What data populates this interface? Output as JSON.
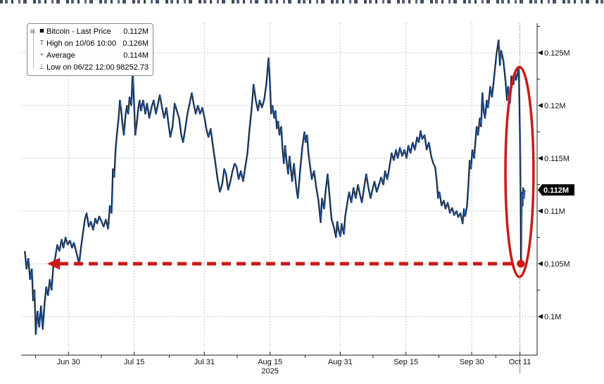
{
  "legend": {
    "rows": [
      {
        "marker": "last-price-square",
        "label": "Bitcoin - Last Price",
        "value": "0.112M"
      },
      {
        "marker": "high-marker",
        "label": "High on 10/06 10:00",
        "value": "0.126M"
      },
      {
        "marker": "average-marker",
        "label": "Average",
        "value": "0.114M"
      },
      {
        "marker": "low-marker",
        "label": "Low on 06/22 12:00",
        "value": "98252.73"
      }
    ]
  },
  "colors": {
    "line_black": "#0a0d12",
    "line_blue": "#2e6cc1",
    "annotation_red": "#cc1a15",
    "grid_gray": "#9c9c9c",
    "last_price_tag_bg": "#000000",
    "last_price_tag_text": "#ffffff"
  },
  "chart_data": {
    "type": "line",
    "title": "Bitcoin - Last Price",
    "x_unit": "days since 2025-06-20",
    "year_label": "2025",
    "ylim": [
      0.0963,
      0.1278
    ],
    "grid": true,
    "legend_position": "top-left",
    "stats": {
      "last_price": "0.112M",
      "high_on_10_06_10_00": "0.126M",
      "average": "0.114M",
      "low_on_06_22_12_00": "98252.73"
    },
    "y_ticks": [
      {
        "label": "0.1M",
        "value": 0.1
      },
      {
        "label": "0.105M",
        "value": 0.105
      },
      {
        "label": "0.11M",
        "value": 0.11
      },
      {
        "label": "0.115M",
        "value": 0.115
      },
      {
        "label": "0.12M",
        "value": 0.12
      },
      {
        "label": "0.125M",
        "value": 0.125
      }
    ],
    "y_minor": [
      0.1025,
      0.1075,
      0.1125,
      0.1175,
      0.1225,
      0.1275
    ],
    "x_ticks": [
      {
        "label": "Jun 30",
        "d": 10
      },
      {
        "label": "Jul 15",
        "d": 25
      },
      {
        "label": "Jul 31",
        "d": 41
      },
      {
        "label": "Aug 15",
        "d": 56
      },
      {
        "label": "Aug 31",
        "d": 72
      },
      {
        "label": "Sep 15",
        "d": 87
      },
      {
        "label": "Sep 30",
        "d": 102
      },
      {
        "label": "Oct 11",
        "d": 113
      }
    ],
    "x_minor_d": [
      2.5,
      17.5,
      33,
      48.5,
      64,
      79.5,
      94.5,
      107.5
    ],
    "crosshair_d": 113,
    "last_price_label": "0.112M",
    "last_price_value": 0.112,
    "annotations": {
      "dashed_level_line": {
        "value": 0.105,
        "d_from": 5.3,
        "d_to": 113.2,
        "arrow": "left",
        "color": "#cc1a15"
      },
      "endpoint_dot": {
        "d": 113.2,
        "value": 0.105
      },
      "ellipse_highlight": {
        "d_center": 112.9,
        "value_center": 0.1137,
        "d_half_width": 3.2,
        "value_half_height": 0.00995
      }
    },
    "series": [
      {
        "name": "Bitcoin - Last Price",
        "points": [
          [
            0.0,
            0.1062
          ],
          [
            0.4,
            0.1045
          ],
          [
            0.8,
            0.1055
          ],
          [
            1.2,
            0.1035
          ],
          [
            1.6,
            0.1045
          ],
          [
            1.9,
            0.1015
          ],
          [
            2.2,
            0.1025
          ],
          [
            2.5,
            0.0983
          ],
          [
            2.9,
            0.1005
          ],
          [
            3.3,
            0.099
          ],
          [
            3.7,
            0.101
          ],
          [
            4.1,
            0.0988
          ],
          [
            4.5,
            0.1012
          ],
          [
            4.9,
            0.1028
          ],
          [
            5.3,
            0.102
          ],
          [
            5.7,
            0.1035
          ],
          [
            6.1,
            0.1025
          ],
          [
            6.5,
            0.1048
          ],
          [
            6.9,
            0.1055
          ],
          [
            7.4,
            0.1068
          ],
          [
            7.9,
            0.1062
          ],
          [
            8.4,
            0.1073
          ],
          [
            8.8,
            0.1065
          ],
          [
            9.3,
            0.1075
          ],
          [
            9.8,
            0.1068
          ],
          [
            10.3,
            0.1072
          ],
          [
            10.8,
            0.1065
          ],
          [
            11.2,
            0.107
          ],
          [
            11.7,
            0.1062
          ],
          [
            12.4,
            0.105
          ],
          [
            12.8,
            0.1065
          ],
          [
            13.3,
            0.108
          ],
          [
            13.7,
            0.1092
          ],
          [
            14.1,
            0.1098
          ],
          [
            14.6,
            0.1085
          ],
          [
            15.1,
            0.109
          ],
          [
            15.6,
            0.1082
          ],
          [
            16.1,
            0.1093
          ],
          [
            16.5,
            0.1088
          ],
          [
            17.0,
            0.1095
          ],
          [
            17.5,
            0.109
          ],
          [
            18.0,
            0.1085
          ],
          [
            18.5,
            0.1092
          ],
          [
            19.0,
            0.1083
          ],
          [
            19.4,
            0.1105
          ],
          [
            19.8,
            0.1098
          ],
          [
            20.1,
            0.114
          ],
          [
            20.4,
            0.1132
          ],
          [
            20.7,
            0.1158
          ],
          [
            21.0,
            0.1172
          ],
          [
            21.4,
            0.1188
          ],
          [
            21.7,
            0.1205
          ],
          [
            22.0,
            0.1195
          ],
          [
            22.3,
            0.1182
          ],
          [
            22.6,
            0.1172
          ],
          [
            23.0,
            0.1192
          ],
          [
            23.3,
            0.12
          ],
          [
            23.6,
            0.1192
          ],
          [
            23.9,
            0.1208
          ],
          [
            24.3,
            0.12
          ],
          [
            24.6,
            0.1232
          ],
          [
            24.9,
            0.1205
          ],
          [
            25.2,
            0.1172
          ],
          [
            25.5,
            0.1182
          ],
          [
            25.9,
            0.1198
          ],
          [
            26.2,
            0.1205
          ],
          [
            26.5,
            0.1195
          ],
          [
            27.0,
            0.1205
          ],
          [
            27.5,
            0.1192
          ],
          [
            27.9,
            0.1202
          ],
          [
            28.4,
            0.1188
          ],
          [
            28.9,
            0.1198
          ],
          [
            29.4,
            0.1205
          ],
          [
            29.9,
            0.1192
          ],
          [
            30.4,
            0.1202
          ],
          [
            30.8,
            0.121
          ],
          [
            31.3,
            0.1198
          ],
          [
            31.8,
            0.1188
          ],
          [
            32.3,
            0.1198
          ],
          [
            32.8,
            0.1182
          ],
          [
            33.2,
            0.117
          ],
          [
            33.7,
            0.118
          ],
          [
            34.2,
            0.1202
          ],
          [
            34.7,
            0.1195
          ],
          [
            35.2,
            0.1188
          ],
          [
            35.7,
            0.1172
          ],
          [
            36.1,
            0.1165
          ],
          [
            36.6,
            0.1178
          ],
          [
            37.1,
            0.1192
          ],
          [
            37.6,
            0.1202
          ],
          [
            38.1,
            0.1212
          ],
          [
            38.5,
            0.1202
          ],
          [
            39.0,
            0.1192
          ],
          [
            39.5,
            0.12
          ],
          [
            40.0,
            0.1192
          ],
          [
            40.5,
            0.1198
          ],
          [
            41.0,
            0.1188
          ],
          [
            41.4,
            0.1178
          ],
          [
            41.9,
            0.117
          ],
          [
            42.4,
            0.1178
          ],
          [
            42.9,
            0.1162
          ],
          [
            43.5,
            0.1145
          ],
          [
            44.0,
            0.113
          ],
          [
            44.5,
            0.1118
          ],
          [
            45.0,
            0.1125
          ],
          [
            45.5,
            0.114
          ],
          [
            45.9,
            0.1135
          ],
          [
            46.4,
            0.112
          ],
          [
            46.9,
            0.1128
          ],
          [
            47.4,
            0.1138
          ],
          [
            47.9,
            0.1145
          ],
          [
            48.3,
            0.1142
          ],
          [
            48.8,
            0.113
          ],
          [
            49.3,
            0.1138
          ],
          [
            49.8,
            0.1128
          ],
          [
            50.3,
            0.1142
          ],
          [
            50.8,
            0.1155
          ],
          [
            51.2,
            0.1175
          ],
          [
            51.7,
            0.1195
          ],
          [
            52.2,
            0.122
          ],
          [
            52.7,
            0.1205
          ],
          [
            53.2,
            0.1195
          ],
          [
            53.6,
            0.1205
          ],
          [
            54.1,
            0.1198
          ],
          [
            54.6,
            0.1205
          ],
          [
            55.1,
            0.122
          ],
          [
            55.6,
            0.1245
          ],
          [
            55.9,
            0.1225
          ],
          [
            56.2,
            0.1192
          ],
          [
            56.5,
            0.12
          ],
          [
            56.9,
            0.1188
          ],
          [
            57.2,
            0.1195
          ],
          [
            57.5,
            0.1178
          ],
          [
            57.8,
            0.1185
          ],
          [
            58.1,
            0.1172
          ],
          [
            58.5,
            0.118
          ],
          [
            58.8,
            0.1158
          ],
          [
            59.1,
            0.1145
          ],
          [
            59.4,
            0.1162
          ],
          [
            59.7,
            0.1148
          ],
          [
            60.1,
            0.1135
          ],
          [
            60.4,
            0.1152
          ],
          [
            60.7,
            0.114
          ],
          [
            61.0,
            0.1128
          ],
          [
            61.4,
            0.1145
          ],
          [
            61.7,
            0.1132
          ],
          [
            62.0,
            0.112
          ],
          [
            62.3,
            0.1112
          ],
          [
            62.8,
            0.1138
          ],
          [
            63.3,
            0.116
          ],
          [
            63.8,
            0.1175
          ],
          [
            64.1,
            0.1165
          ],
          [
            64.4,
            0.1172
          ],
          [
            64.7,
            0.1155
          ],
          [
            65.1,
            0.1142
          ],
          [
            65.5,
            0.113
          ],
          [
            66.0,
            0.1138
          ],
          [
            66.5,
            0.1122
          ],
          [
            67.0,
            0.111
          ],
          [
            67.5,
            0.1089
          ],
          [
            67.8,
            0.1112
          ],
          [
            68.3,
            0.1102
          ],
          [
            68.6,
            0.1118
          ],
          [
            69.1,
            0.1135
          ],
          [
            69.4,
            0.112
          ],
          [
            69.7,
            0.1105
          ],
          [
            70.0,
            0.1092
          ],
          [
            70.5,
            0.1085
          ],
          [
            71.0,
            0.1075
          ],
          [
            71.3,
            0.109
          ],
          [
            71.6,
            0.1082
          ],
          [
            72.0,
            0.1076
          ],
          [
            72.3,
            0.1088
          ],
          [
            72.8,
            0.1078
          ],
          [
            73.1,
            0.1095
          ],
          [
            73.6,
            0.1108
          ],
          [
            74.0,
            0.1118
          ],
          [
            74.5,
            0.1108
          ],
          [
            75.0,
            0.1122
          ],
          [
            75.5,
            0.1112
          ],
          [
            76.0,
            0.1125
          ],
          [
            76.5,
            0.1115
          ],
          [
            76.9,
            0.1108
          ],
          [
            77.4,
            0.1122
          ],
          [
            77.9,
            0.1135
          ],
          [
            78.4,
            0.1122
          ],
          [
            78.9,
            0.1112
          ],
          [
            79.3,
            0.112
          ],
          [
            79.8,
            0.1128
          ],
          [
            80.3,
            0.1118
          ],
          [
            80.8,
            0.1125
          ],
          [
            81.3,
            0.1132
          ],
          [
            81.8,
            0.1125
          ],
          [
            82.2,
            0.1138
          ],
          [
            82.7,
            0.113
          ],
          [
            83.2,
            0.1142
          ],
          [
            83.7,
            0.1155
          ],
          [
            84.2,
            0.1148
          ],
          [
            84.7,
            0.1158
          ],
          [
            85.1,
            0.115
          ],
          [
            85.6,
            0.116
          ],
          [
            86.1,
            0.1152
          ],
          [
            86.6,
            0.1158
          ],
          [
            87.1,
            0.115
          ],
          [
            87.5,
            0.1162
          ],
          [
            88.0,
            0.1155
          ],
          [
            88.5,
            0.1165
          ],
          [
            89.0,
            0.1158
          ],
          [
            89.5,
            0.117
          ],
          [
            89.9,
            0.1165
          ],
          [
            90.3,
            0.1176
          ],
          [
            90.7,
            0.1168
          ],
          [
            91.2,
            0.1172
          ],
          [
            91.7,
            0.1158
          ],
          [
            92.2,
            0.1165
          ],
          [
            92.7,
            0.1152
          ],
          [
            93.2,
            0.1145
          ],
          [
            93.6,
            0.1142
          ],
          [
            94.0,
            0.1128
          ],
          [
            94.3,
            0.1112
          ],
          [
            94.6,
            0.1118
          ],
          [
            95.1,
            0.1105
          ],
          [
            95.6,
            0.111
          ],
          [
            96.0,
            0.1102
          ],
          [
            96.5,
            0.1108
          ],
          [
            97.0,
            0.1098
          ],
          [
            97.5,
            0.1103
          ],
          [
            98.0,
            0.1096
          ],
          [
            98.5,
            0.11
          ],
          [
            98.9,
            0.1094
          ],
          [
            99.4,
            0.1098
          ],
          [
            99.9,
            0.1088
          ],
          [
            100.2,
            0.1102
          ],
          [
            100.5,
            0.1095
          ],
          [
            100.9,
            0.1105
          ],
          [
            101.2,
            0.1125
          ],
          [
            101.5,
            0.1148
          ],
          [
            101.8,
            0.114
          ],
          [
            102.1,
            0.1158
          ],
          [
            102.5,
            0.115
          ],
          [
            102.8,
            0.1165
          ],
          [
            103.1,
            0.118
          ],
          [
            103.4,
            0.1172
          ],
          [
            103.8,
            0.1188
          ],
          [
            104.1,
            0.118
          ],
          [
            104.4,
            0.1212
          ],
          [
            104.7,
            0.1195
          ],
          [
            105.0,
            0.1188
          ],
          [
            105.4,
            0.1205
          ],
          [
            105.7,
            0.1198
          ],
          [
            106.2,
            0.1218
          ],
          [
            106.6,
            0.1208
          ],
          [
            107.1,
            0.1228
          ],
          [
            107.6,
            0.1248
          ],
          [
            108.1,
            0.1262
          ],
          [
            108.4,
            0.1238
          ],
          [
            108.7,
            0.1252
          ],
          [
            109.2,
            0.1242
          ],
          [
            109.7,
            0.1222
          ],
          [
            110.0,
            0.1205
          ],
          [
            110.3,
            0.1218
          ],
          [
            110.7,
            0.1202
          ],
          [
            111.0,
            0.1228
          ],
          [
            111.5,
            0.122
          ],
          [
            111.8,
            0.1232
          ],
          [
            112.1,
            0.1224
          ],
          [
            112.4,
            0.123
          ],
          [
            112.7,
            0.1236
          ],
          [
            113.0,
            0.1165
          ],
          [
            113.1,
            0.1115
          ],
          [
            113.2,
            0.1049
          ],
          [
            113.4,
            0.1118
          ],
          [
            113.6,
            0.1105
          ],
          [
            113.7,
            0.1122
          ],
          [
            113.9,
            0.1112
          ],
          [
            114.0,
            0.112
          ]
        ]
      }
    ]
  }
}
